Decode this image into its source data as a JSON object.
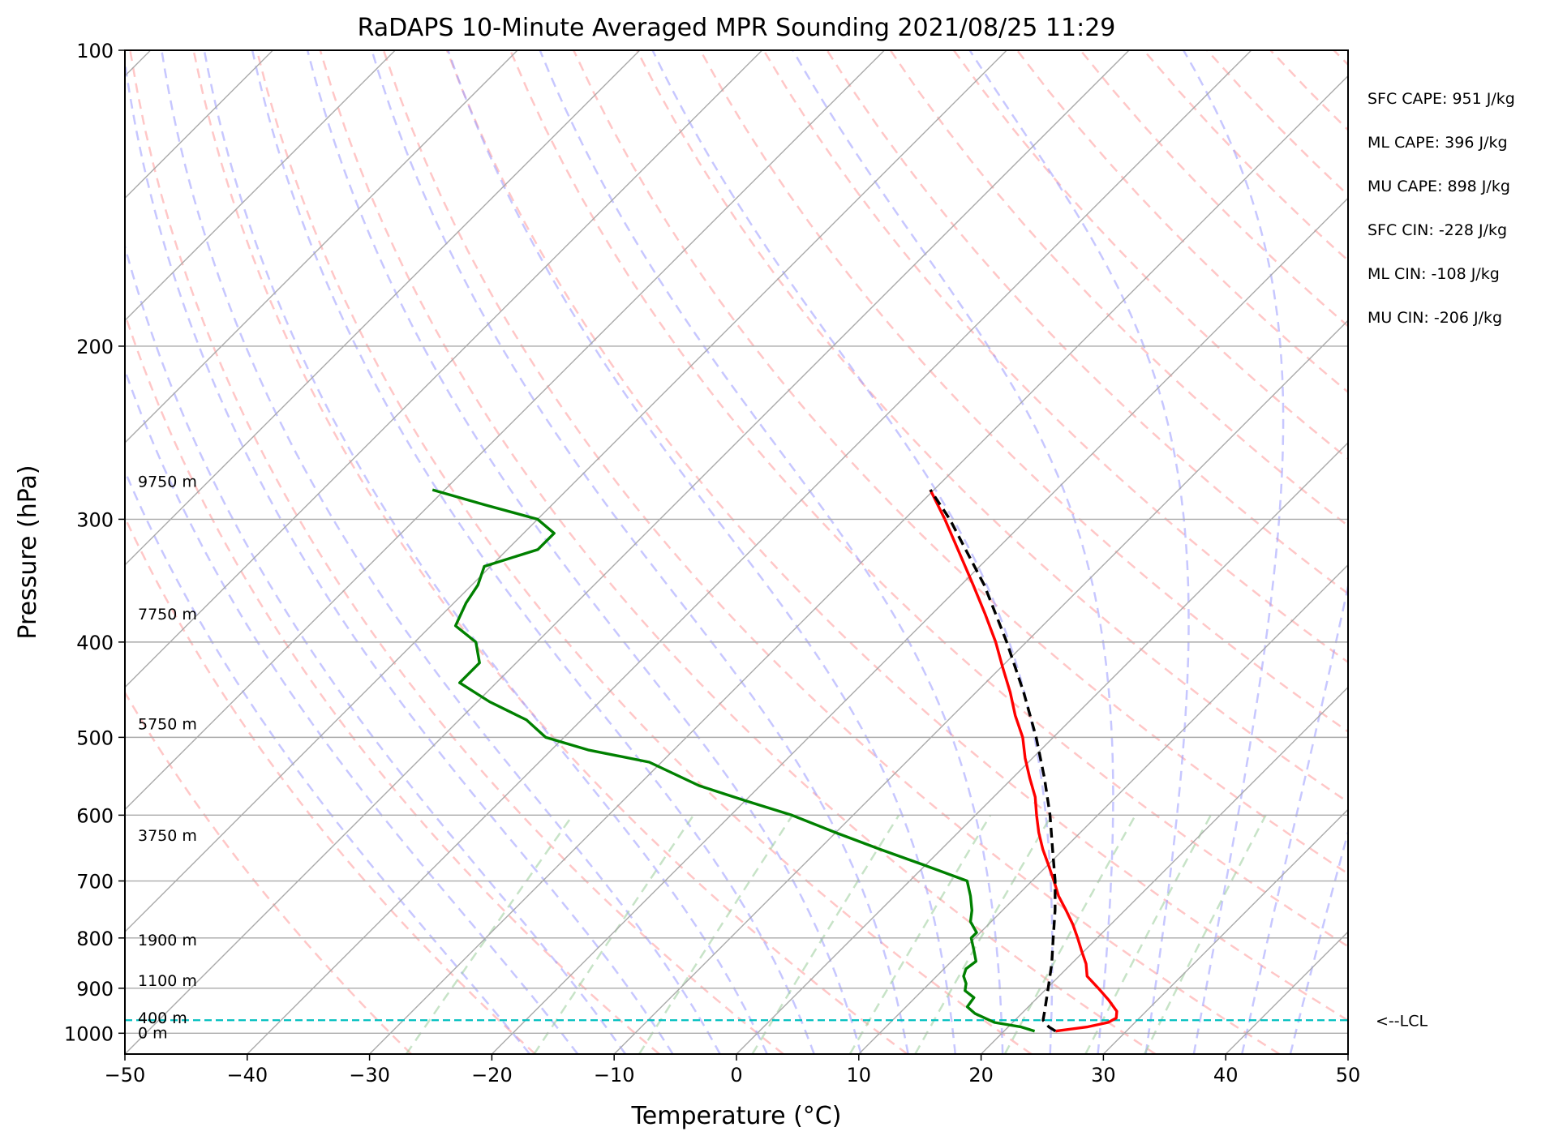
{
  "chart_data": {
    "type": "line",
    "title": "RaDAPS 10-Minute Averaged MPR Sounding 2021/08/25 11:29",
    "xlabel": "Temperature (°C)",
    "ylabel": "Pressure (hPa)",
    "xlim": [
      -50,
      50
    ],
    "ylim": [
      1050,
      100
    ],
    "y_scale": "log",
    "skew": 45,
    "x_ticks": [
      -50,
      -40,
      -30,
      -20,
      -10,
      0,
      10,
      20,
      30,
      40,
      50
    ],
    "x_tick_labels": [
      "−50",
      "−40",
      "−30",
      "−20",
      "−10",
      "0",
      "10",
      "20",
      "30",
      "40",
      "50"
    ],
    "y_ticks": [
      100,
      200,
      300,
      400,
      500,
      600,
      700,
      800,
      900,
      1000
    ],
    "y_tick_labels": [
      "100",
      "200",
      "300",
      "400",
      "500",
      "600",
      "700",
      "800",
      "900",
      "1000"
    ],
    "grid": true,
    "colors": {
      "temperature": "#ff0000",
      "dewpoint": "#008000",
      "parcel": "#000000",
      "lcl": "#00bfbf",
      "dry_adiabat": "#ff9999",
      "moist_adiabat": "#9999ff",
      "mixing_ratio": "#99cc99",
      "isotherm": "#aaaaaa"
    },
    "series": [
      {
        "key": "temperature",
        "style": "solid",
        "points": [
          {
            "p": 995,
            "t": 24.2
          },
          {
            "p": 985,
            "t": 26.5
          },
          {
            "p": 975,
            "t": 27.8
          },
          {
            "p": 965,
            "t": 28.1
          },
          {
            "p": 950,
            "t": 27.6
          },
          {
            "p": 925,
            "t": 26.0
          },
          {
            "p": 900,
            "t": 24.2
          },
          {
            "p": 875,
            "t": 22.3
          },
          {
            "p": 850,
            "t": 21.2
          },
          {
            "p": 825,
            "t": 19.8
          },
          {
            "p": 800,
            "t": 18.4
          },
          {
            "p": 775,
            "t": 16.9
          },
          {
            "p": 750,
            "t": 15.2
          },
          {
            "p": 725,
            "t": 13.4
          },
          {
            "p": 700,
            "t": 11.8
          },
          {
            "p": 675,
            "t": 10.1
          },
          {
            "p": 650,
            "t": 8.3
          },
          {
            "p": 625,
            "t": 6.6
          },
          {
            "p": 600,
            "t": 5.0
          },
          {
            "p": 575,
            "t": 3.4
          },
          {
            "p": 550,
            "t": 1.4
          },
          {
            "p": 525,
            "t": -0.6
          },
          {
            "p": 500,
            "t": -2.5
          },
          {
            "p": 475,
            "t": -4.9
          },
          {
            "p": 450,
            "t": -7.2
          },
          {
            "p": 425,
            "t": -9.8
          },
          {
            "p": 400,
            "t": -12.5
          },
          {
            "p": 375,
            "t": -15.6
          },
          {
            "p": 350,
            "t": -19.0
          },
          {
            "p": 325,
            "t": -22.7
          },
          {
            "p": 300,
            "t": -26.7
          },
          {
            "p": 280,
            "t": -30.3
          }
        ]
      },
      {
        "key": "dewpoint",
        "style": "solid",
        "points": [
          {
            "p": 995,
            "t": 22.5
          },
          {
            "p": 985,
            "t": 21.0
          },
          {
            "p": 975,
            "t": 18.5
          },
          {
            "p": 955,
            "t": 16.2
          },
          {
            "p": 940,
            "t": 15.0
          },
          {
            "p": 920,
            "t": 14.8
          },
          {
            "p": 905,
            "t": 13.5
          },
          {
            "p": 890,
            "t": 13.0
          },
          {
            "p": 875,
            "t": 12.2
          },
          {
            "p": 860,
            "t": 11.8
          },
          {
            "p": 845,
            "t": 12.0
          },
          {
            "p": 825,
            "t": 11.0
          },
          {
            "p": 800,
            "t": 9.7
          },
          {
            "p": 790,
            "t": 9.7
          },
          {
            "p": 770,
            "t": 8.3
          },
          {
            "p": 750,
            "t": 7.5
          },
          {
            "p": 725,
            "t": 6.2
          },
          {
            "p": 700,
            "t": 4.7
          },
          {
            "p": 675,
            "t": 0.0
          },
          {
            "p": 650,
            "t": -5.0
          },
          {
            "p": 625,
            "t": -10.0
          },
          {
            "p": 600,
            "t": -15.0
          },
          {
            "p": 580,
            "t": -20.0
          },
          {
            "p": 560,
            "t": -25.0
          },
          {
            "p": 530,
            "t": -31.0
          },
          {
            "p": 515,
            "t": -37.0
          },
          {
            "p": 500,
            "t": -41.5
          },
          {
            "p": 480,
            "t": -44.5
          },
          {
            "p": 460,
            "t": -49.0
          },
          {
            "p": 440,
            "t": -53.0
          },
          {
            "p": 420,
            "t": -53.0
          },
          {
            "p": 400,
            "t": -55.0
          },
          {
            "p": 385,
            "t": -58.0
          },
          {
            "p": 365,
            "t": -59.0
          },
          {
            "p": 350,
            "t": -59.5
          },
          {
            "p": 335,
            "t": -60.5
          },
          {
            "p": 322,
            "t": -57.5
          },
          {
            "p": 310,
            "t": -57.5
          },
          {
            "p": 300,
            "t": -60.0
          },
          {
            "p": 290,
            "t": -65.5
          },
          {
            "p": 280,
            "t": -71.0
          }
        ]
      },
      {
        "key": "parcel",
        "style": "dashed",
        "points": [
          {
            "p": 995,
            "t": 24.2
          },
          {
            "p": 985,
            "t": 23.3
          },
          {
            "p": 970,
            "t": 22.3
          },
          {
            "p": 950,
            "t": 21.7
          },
          {
            "p": 900,
            "t": 20.1
          },
          {
            "p": 850,
            "t": 18.4
          },
          {
            "p": 800,
            "t": 16.4
          },
          {
            "p": 750,
            "t": 14.3
          },
          {
            "p": 700,
            "t": 11.9
          },
          {
            "p": 650,
            "t": 9.1
          },
          {
            "p": 600,
            "t": 6.1
          },
          {
            "p": 550,
            "t": 2.6
          },
          {
            "p": 500,
            "t": -1.4
          },
          {
            "p": 450,
            "t": -6.1
          },
          {
            "p": 400,
            "t": -11.6
          },
          {
            "p": 350,
            "t": -18.1
          },
          {
            "p": 300,
            "t": -26.3
          },
          {
            "p": 280,
            "t": -30.3
          }
        ]
      }
    ],
    "lcl": {
      "p": 970,
      "label": "<--LCL"
    },
    "height_labels": [
      {
        "p": 1000,
        "label": "0 m"
      },
      {
        "p": 966,
        "label": "400 m"
      },
      {
        "p": 885,
        "label": "1100 m"
      },
      {
        "p": 805,
        "label": "1900 m"
      },
      {
        "p": 630,
        "label": "3750 m"
      },
      {
        "p": 485,
        "label": "5750 m"
      },
      {
        "p": 375,
        "label": "7750 m"
      },
      {
        "p": 275,
        "label": "9750 m"
      }
    ],
    "indices": [
      "SFC CAPE: 951 J/kg",
      "ML CAPE: 396 J/kg",
      "MU CAPE: 898 J/kg",
      "SFC CIN: -228 J/kg",
      "ML CIN: -108 J/kg",
      "MU CIN: -206 J/kg"
    ]
  }
}
